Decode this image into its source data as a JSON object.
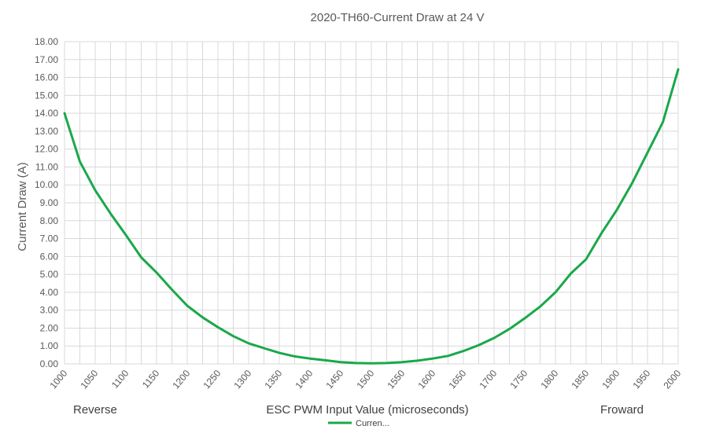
{
  "chart_data": {
    "type": "line",
    "title": "2020-TH60-Current Draw at 24 V",
    "xlabel": "ESC PWM Input Value (microseconds)",
    "ylabel": "Current Draw  (A)",
    "left_note": "Reverse",
    "right_note": "Froward",
    "xlim": [
      1000,
      2000
    ],
    "ylim": [
      0,
      18
    ],
    "y_ticks": [
      "0.00",
      "1.00",
      "2.00",
      "3.00",
      "4.00",
      "5.00",
      "6.00",
      "7.00",
      "8.00",
      "9.00",
      "10.00",
      "11.00",
      "12.00",
      "13.00",
      "14.00",
      "15.00",
      "16.00",
      "17.00",
      "18.00"
    ],
    "x_ticks": [
      "1000",
      "1050",
      "1100",
      "1150",
      "1200",
      "1250",
      "1300",
      "1350",
      "1400",
      "1450",
      "1500",
      "1550",
      "1600",
      "1650",
      "1700",
      "1750",
      "1800",
      "1850",
      "1900",
      "1950",
      "2000"
    ],
    "grid": true,
    "legend_position": "bottom",
    "colors": {
      "series": "#1aa84a",
      "grid": "#d9d9d9",
      "text": "#595959"
    },
    "series": [
      {
        "name": "Curren...",
        "x": [
          1000,
          1025,
          1050,
          1075,
          1100,
          1125,
          1150,
          1175,
          1200,
          1225,
          1250,
          1275,
          1300,
          1325,
          1350,
          1375,
          1400,
          1425,
          1450,
          1475,
          1500,
          1525,
          1550,
          1575,
          1600,
          1625,
          1650,
          1675,
          1700,
          1725,
          1750,
          1775,
          1800,
          1825,
          1850,
          1875,
          1900,
          1925,
          1950,
          1975,
          2000
        ],
        "values": [
          14.0,
          11.3,
          9.7,
          8.4,
          7.2,
          5.95,
          5.1,
          4.15,
          3.25,
          2.6,
          2.05,
          1.55,
          1.15,
          0.88,
          0.62,
          0.42,
          0.3,
          0.2,
          0.1,
          0.05,
          0.03,
          0.05,
          0.1,
          0.18,
          0.3,
          0.45,
          0.72,
          1.05,
          1.45,
          1.95,
          2.55,
          3.2,
          4.0,
          5.05,
          5.85,
          7.3,
          8.6,
          10.1,
          11.8,
          13.5,
          16.45
        ]
      }
    ]
  }
}
